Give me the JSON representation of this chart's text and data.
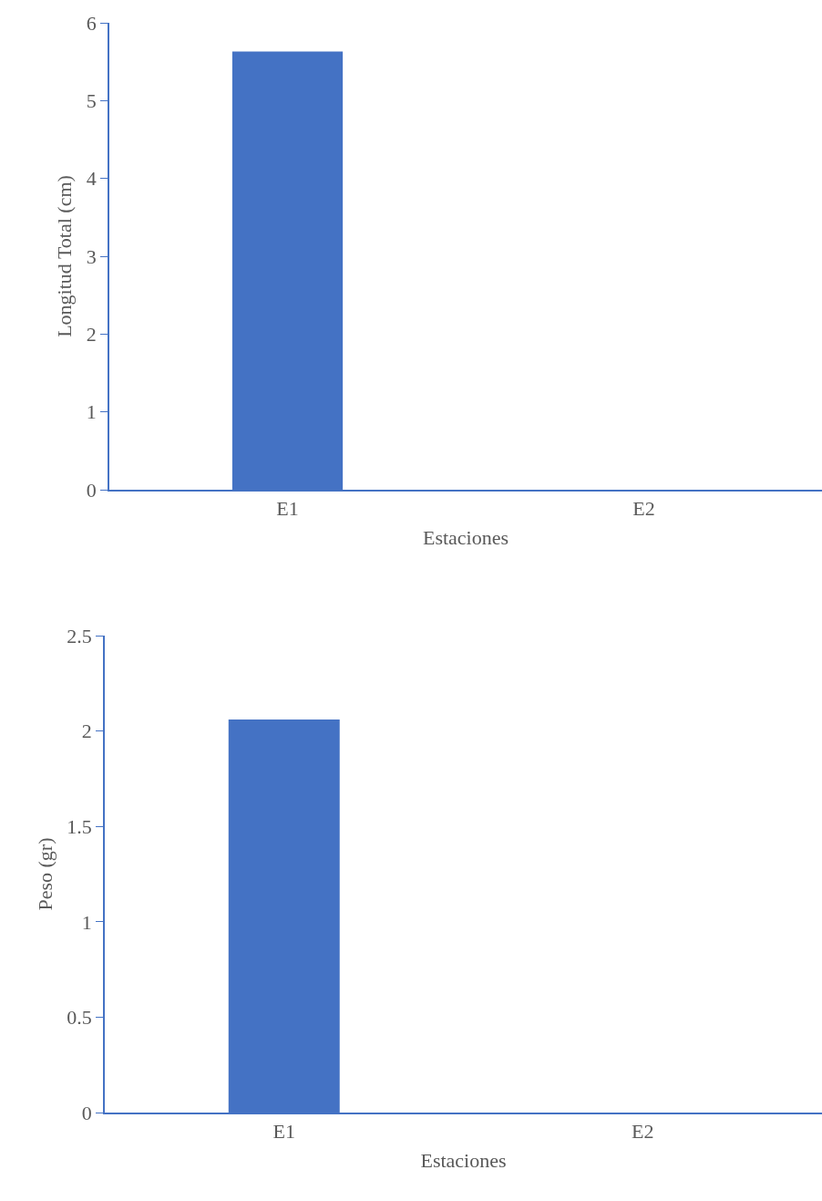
{
  "chart_data": [
    {
      "type": "bar",
      "categories": [
        "E1",
        "E2"
      ],
      "values": [
        5.63,
        0
      ],
      "color": "#4472c4",
      "xlabel": "Estaciones",
      "ylabel": "Longitud Total (cm)",
      "ylim": [
        0,
        6
      ],
      "yticks": [
        0,
        1,
        2,
        3,
        4,
        5,
        6
      ]
    },
    {
      "type": "bar",
      "categories": [
        "E1",
        "E2"
      ],
      "values": [
        2.06,
        0
      ],
      "color": "#4472c4",
      "xlabel": "Estaciones",
      "ylabel": "Peso (gr)",
      "ylim": [
        0,
        2.5
      ],
      "yticks": [
        0,
        0.5,
        1,
        1.5,
        2,
        2.5
      ]
    }
  ]
}
